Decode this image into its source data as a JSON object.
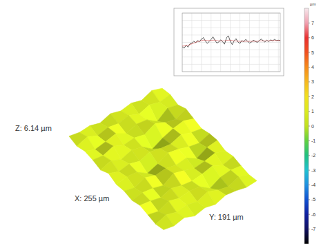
{
  "chart_data": [
    {
      "type": "surface",
      "labels": {
        "z": "Z: 6.14 µm",
        "x": "X: 255 µm",
        "y": "Y: 191 µm"
      },
      "heights": [
        [
          0.6,
          0.9,
          0.4,
          1.1,
          0.7,
          0.3,
          0.8,
          1.0,
          0.5,
          0.9,
          0.6,
          0.4,
          0.7
        ],
        [
          1.2,
          0.5,
          0.8,
          0.2,
          1.3,
          0.6,
          0.1,
          0.7,
          1.1,
          0.3,
          0.8,
          1.0,
          0.5
        ],
        [
          0.4,
          1.0,
          -0.6,
          0.6,
          0.9,
          1.2,
          0.4,
          -0.3,
          0.6,
          1.2,
          0.5,
          0.2,
          0.9
        ],
        [
          0.9,
          0.3,
          0.7,
          1.4,
          0.2,
          0.5,
          1.0,
          0.8,
          0.3,
          0.7,
          -0.5,
          0.6,
          1.1
        ],
        [
          0.5,
          1.1,
          0.9,
          0.4,
          -0.8,
          0.7,
          1.3,
          0.5,
          0.9,
          0.4,
          0.8,
          1.3,
          0.4
        ],
        [
          1.0,
          0.6,
          0.2,
          0.8,
          0.6,
          1.1,
          0.3,
          0.9,
          1.4,
          0.6,
          1.0,
          0.5,
          0.8
        ],
        [
          0.3,
          0.9,
          1.2,
          0.5,
          1.0,
          0.4,
          -0.4,
          0.6,
          0.2,
          1.1,
          0.7,
          0.9,
          0.3
        ],
        [
          0.8,
          0.4,
          0.7,
          1.3,
          0.3,
          0.9,
          0.8,
          1.2,
          0.7,
          0.4,
          1.2,
          0.6,
          1.0
        ],
        [
          0.6,
          1.2,
          0.3,
          0.6,
          1.1,
          0.5,
          1.0,
          0.4,
          0.9,
          0.8,
          0.3,
          1.1,
          0.5
        ],
        [
          0.9,
          0.5,
          1.0,
          0.8,
          0.4,
          1.2,
          0.6,
          0.8,
          0.5,
          1.0,
          0.7,
          0.4,
          0.8
        ]
      ],
      "colorbar": {
        "unit": "µm",
        "range": [
          -8,
          8
        ],
        "ticks": [
          -7,
          -6,
          -5,
          -4,
          -3,
          -2,
          -1,
          0,
          1,
          2,
          3,
          4,
          5,
          6,
          7
        ]
      }
    },
    {
      "type": "line",
      "x": [
        0,
        5,
        10,
        15,
        20,
        25,
        30,
        35,
        40,
        45,
        50,
        55,
        60,
        65,
        70,
        75,
        80,
        85,
        90,
        95,
        100,
        105,
        110,
        115,
        120,
        125,
        130,
        135,
        140,
        145,
        150,
        155,
        160,
        165,
        170,
        175,
        180,
        185,
        190,
        195,
        200,
        205,
        210,
        215,
        220,
        225,
        230,
        235,
        240,
        245,
        250,
        255
      ],
      "series": [
        {
          "color": "#333333",
          "values": [
            -1.2,
            -1.6,
            -0.8,
            -1.3,
            -0.4,
            -0.2,
            0.3,
            -0.1,
            0.5,
            0.2,
            0.9,
            1.3,
            0.4,
            -0.3,
            0.2,
            0.8,
            1.5,
            0.6,
            -0.2,
            0.1,
            0.7,
            0.2,
            -0.5,
            1.2,
            1.8,
            0.3,
            -0.6,
            0.4,
            1.0,
            0.1,
            -0.3,
            0.5,
            0.2,
            0.8,
            0.3,
            -0.2,
            0.1,
            0.6,
            0.3,
            0.0,
            0.4,
            0.9,
            0.5,
            0.1,
            0.6,
            0.2,
            0.7,
            0.4,
            0.8,
            0.5,
            0.6,
            0.5
          ]
        },
        {
          "color": "#d04040",
          "values": [
            -1.0,
            -1.0,
            -0.9,
            -0.8,
            -0.6,
            -0.4,
            -0.2,
            0.0,
            0.2,
            0.3,
            0.5,
            0.6,
            0.6,
            0.5,
            0.5,
            0.5,
            0.6,
            0.6,
            0.5,
            0.4,
            0.4,
            0.4,
            0.4,
            0.5,
            0.6,
            0.6,
            0.5,
            0.4,
            0.4,
            0.3,
            0.3,
            0.3,
            0.3,
            0.3,
            0.3,
            0.3,
            0.3,
            0.3,
            0.3,
            0.3,
            0.4,
            0.4,
            0.4,
            0.4,
            0.4,
            0.4,
            0.5,
            0.5,
            0.5,
            0.5,
            0.5,
            0.5
          ]
        }
      ],
      "xlim": [
        0,
        255
      ],
      "xticks": [
        0,
        25,
        50,
        75,
        100,
        125,
        150,
        175,
        200,
        225,
        250
      ],
      "ylim": [
        -8,
        8
      ],
      "yticks": [
        -8,
        -6,
        -4,
        -2,
        0,
        2,
        4,
        6,
        8
      ],
      "grid": true,
      "tick_labels": false
    }
  ]
}
